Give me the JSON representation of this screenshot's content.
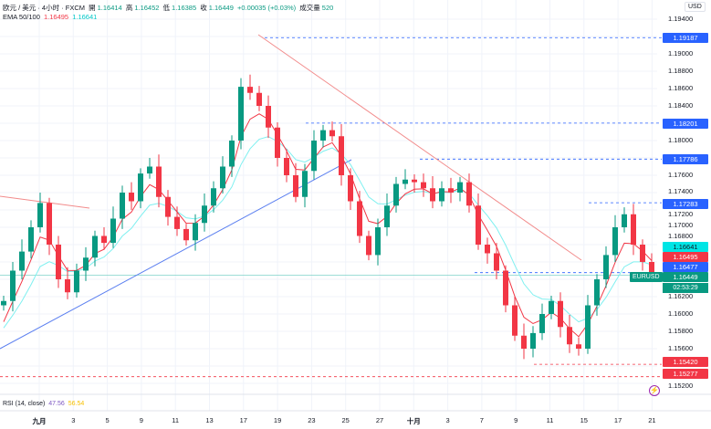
{
  "header": {
    "symbol": "欧元 / 美元 · 4小时 · FXCM",
    "open_label": "開",
    "open": "1.16414",
    "high_label": "高",
    "high": "1.16452",
    "low_label": "低",
    "low": "1.16385",
    "close_label": "收",
    "close": "1.16449",
    "change": "+0.00035 (+0.03%)",
    "volume_label": "成交量",
    "volume": "520"
  },
  "ema": {
    "label": "EMA 50/100",
    "v50": "1.16495",
    "v100": "1.16641"
  },
  "rsi": {
    "label": "RSI (14, close)",
    "v1": "47.56",
    "v2": "56.54"
  },
  "currency": "USD",
  "symbol_tag": "EURUSD",
  "countdown": "02:53:29",
  "colors": {
    "up": "#089981",
    "down": "#f23645",
    "ema50": "#f23645",
    "ema100": "#7ff0f0",
    "trend_red": "#f28b8b",
    "trend_blue": "#5b7ff0",
    "accent_blue": "#2962ff"
  },
  "price_tags": [
    {
      "value": "1.19187",
      "color": "#2962ff"
    },
    {
      "value": "1.18201",
      "color": "#2962ff"
    },
    {
      "value": "1.17786",
      "color": "#2962ff"
    },
    {
      "value": "1.17283",
      "color": "#2962ff"
    },
    {
      "value": "1.16641",
      "color": "#00e5e5"
    },
    {
      "value": "1.16495",
      "color": "#f23645"
    },
    {
      "value": "1.16477",
      "color": "#2962ff"
    },
    {
      "value": "1.16449",
      "color": "#089981"
    },
    {
      "value": "1.15420",
      "color": "#f23645"
    },
    {
      "value": "1.15277",
      "color": "#f23645"
    }
  ],
  "price_axis": [
    "1.19400",
    "1.19000",
    "1.18800",
    "1.18600",
    "1.18400",
    "1.18000",
    "1.17600",
    "1.17400",
    "1.17200",
    "1.17000",
    "1.16800",
    "1.16200",
    "1.16000",
    "1.15800",
    "1.15600",
    "1.15200"
  ],
  "dates": [
    "九月",
    "3",
    "5",
    "9",
    "11",
    "13",
    "17",
    "19",
    "23",
    "25",
    "27",
    "十月",
    "3",
    "7",
    "9",
    "11",
    "15",
    "17",
    "21"
  ],
  "chart_data": {
    "type": "candlestick",
    "ylim": [
      1.15,
      1.196
    ],
    "closes": [
      1.1615,
      1.165,
      1.1672,
      1.17,
      1.1728,
      1.168,
      1.164,
      1.1625,
      1.165,
      1.1665,
      1.169,
      1.1682,
      1.171,
      1.174,
      1.173,
      1.1762,
      1.177,
      1.1735,
      1.1712,
      1.1698,
      1.1685,
      1.1705,
      1.1725,
      1.1745,
      1.177,
      1.18,
      1.1862,
      1.1855,
      1.184,
      1.1815,
      1.178,
      1.176,
      1.1735,
      1.1765,
      1.18,
      1.1812,
      1.1805,
      1.176,
      1.173,
      1.169,
      1.1668,
      1.17,
      1.1725,
      1.175,
      1.1755,
      1.1752,
      1.1745,
      1.173,
      1.1745,
      1.174,
      1.1752,
      1.1725,
      1.168,
      1.167,
      1.165,
      1.161,
      1.1575,
      1.156,
      1.1578,
      1.16,
      1.1615,
      1.1585,
      1.1565,
      1.156,
      1.161,
      1.164,
      1.1668,
      1.17,
      1.1715,
      1.168,
      1.166,
      1.16449
    ]
  }
}
